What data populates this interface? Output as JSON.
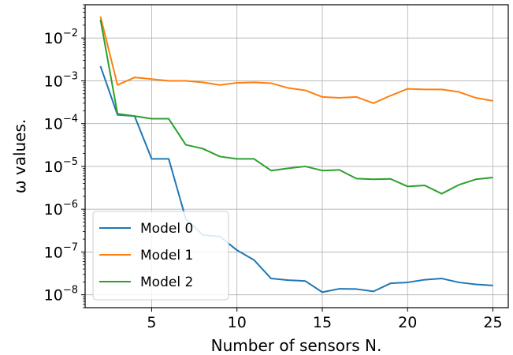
{
  "chart_data": {
    "type": "line",
    "xlabel": "Number of sensors N.",
    "ylabel": "ω values.",
    "xscale": "linear",
    "yscale": "log",
    "xlim": [
      1.1,
      25.9
    ],
    "ylim": [
      5e-09,
      0.06
    ],
    "xticks": [
      5,
      10,
      15,
      20,
      25
    ],
    "yticks": [
      {
        "value": 1e-08,
        "base": "10",
        "exp": "−8"
      },
      {
        "value": 1e-07,
        "base": "10",
        "exp": "−7"
      },
      {
        "value": 1e-06,
        "base": "10",
        "exp": "−6"
      },
      {
        "value": 1e-05,
        "base": "10",
        "exp": "−5"
      },
      {
        "value": 0.0001,
        "base": "10",
        "exp": "−4"
      },
      {
        "value": 0.001,
        "base": "10",
        "exp": "−3"
      },
      {
        "value": 0.01,
        "base": "10",
        "exp": "−2"
      }
    ],
    "grid": true,
    "legend_position": "lower-left",
    "x": [
      2,
      3,
      4,
      5,
      6,
      7,
      8,
      9,
      10,
      11,
      12,
      13,
      14,
      15,
      16,
      17,
      18,
      19,
      20,
      21,
      22,
      23,
      24,
      25
    ],
    "series": [
      {
        "name": "Model 0",
        "color": "#1f77b4",
        "values": [
          0.0022,
          0.00016,
          0.00015,
          1.5e-05,
          1.5e-05,
          6e-07,
          2.5e-07,
          2.3e-07,
          1.1e-07,
          6.5e-08,
          2.4e-08,
          2.2e-08,
          2.1e-08,
          1.15e-08,
          1.38e-08,
          1.36e-08,
          1.2e-08,
          1.85e-08,
          1.95e-08,
          2.25e-08,
          2.4e-08,
          1.95e-08,
          1.75e-08,
          1.65e-08
        ]
      },
      {
        "name": "Model 1",
        "color": "#ff7f0e",
        "values": [
          0.032,
          0.0008,
          0.0012,
          0.0011,
          0.001,
          0.001,
          0.00092,
          0.0008,
          0.0009,
          0.00092,
          0.00088,
          0.00068,
          0.0006,
          0.00042,
          0.0004,
          0.00042,
          0.0003,
          0.00045,
          0.00065,
          0.00063,
          0.00063,
          0.00055,
          0.0004,
          0.00034
        ]
      },
      {
        "name": "Model 2",
        "color": "#2ca02c",
        "values": [
          0.027,
          0.00017,
          0.00015,
          0.00013,
          0.00013,
          3.2e-05,
          2.6e-05,
          1.7e-05,
          1.5e-05,
          1.5e-05,
          8e-06,
          9e-06,
          1e-05,
          8e-06,
          8.3e-06,
          5.2e-06,
          5e-06,
          5.1e-06,
          3.4e-06,
          3.6e-06,
          2.3e-06,
          3.7e-06,
          5e-06,
          5.5e-06
        ]
      }
    ]
  }
}
